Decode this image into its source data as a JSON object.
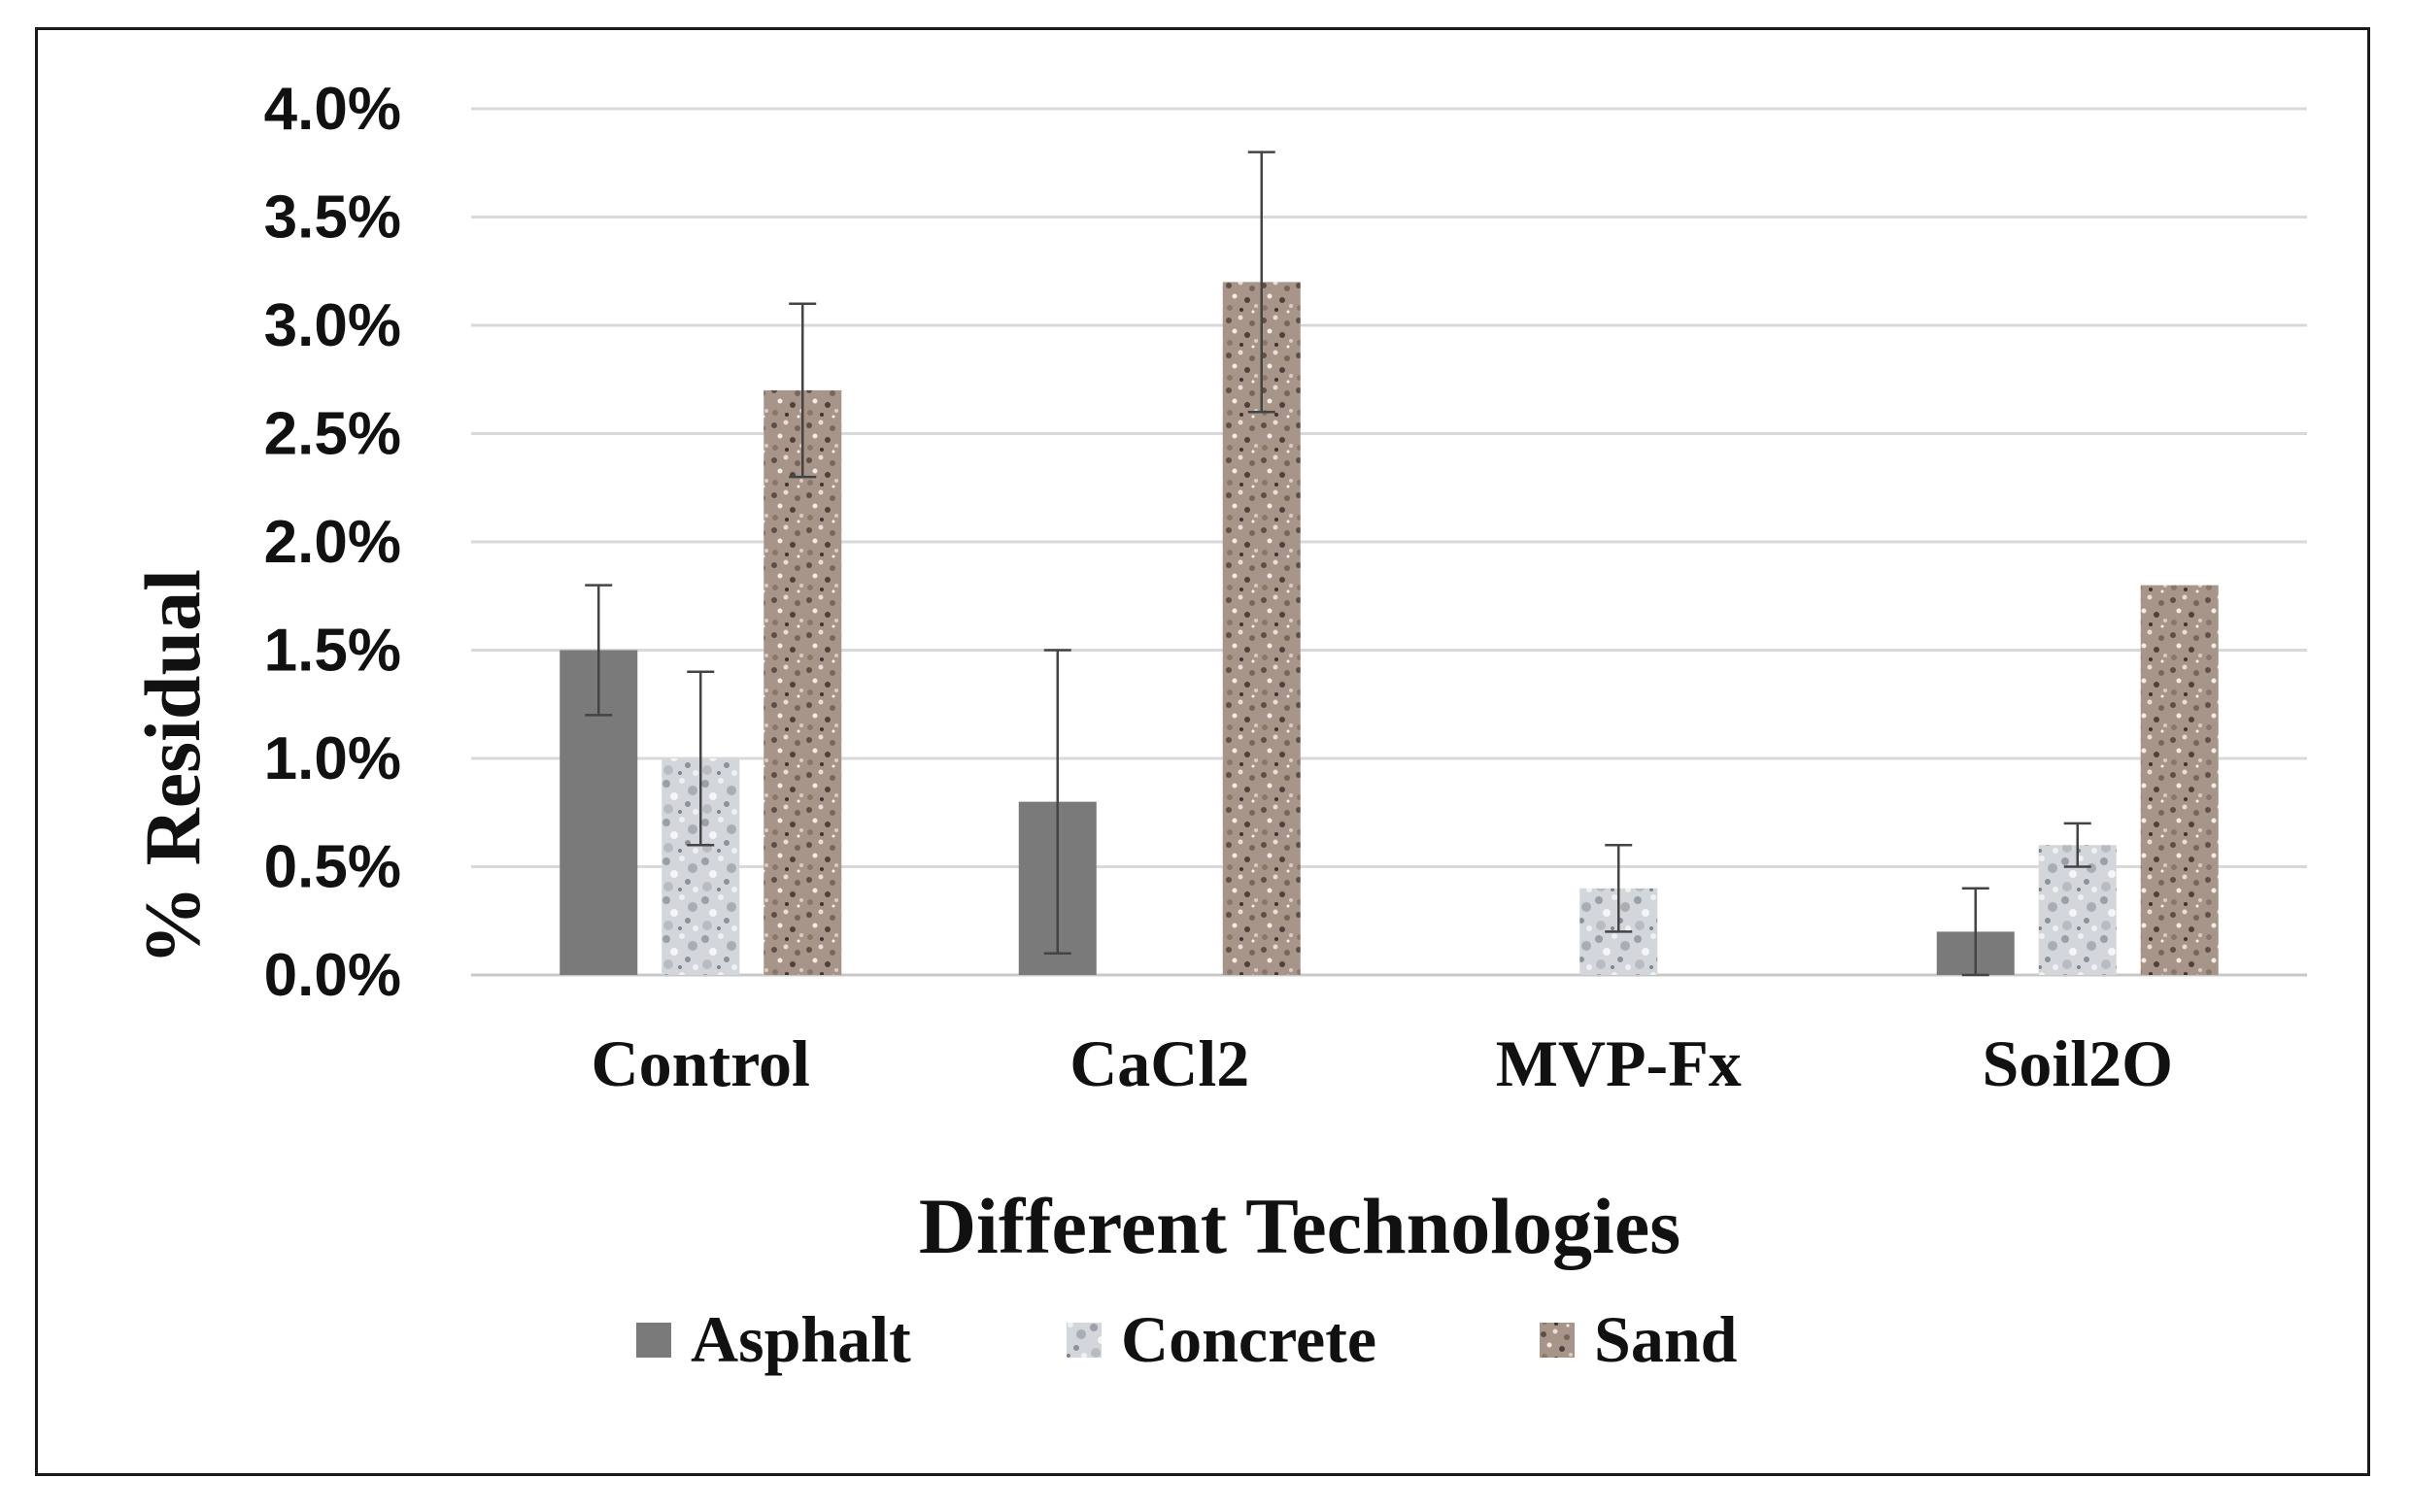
{
  "chart_data": {
    "type": "bar",
    "title": "",
    "xlabel": "Different Technologies",
    "ylabel": "% Residual",
    "categories": [
      "Control",
      "CaCl2",
      "MVP-Fx",
      "Soil2O"
    ],
    "ylim": [
      0,
      4.0
    ],
    "yticks": [
      "0.0%",
      "0.5%",
      "1.0%",
      "1.5%",
      "2.0%",
      "2.5%",
      "3.0%",
      "3.5%",
      "4.0%"
    ],
    "grid": true,
    "legend_position": "bottom",
    "series": [
      {
        "name": "Asphalt",
        "values": [
          1.5,
          0.8,
          0.0,
          0.2
        ],
        "errors": [
          0.3,
          0.7,
          0.0,
          0.2
        ],
        "color": "#7a7a7a",
        "pattern": "solid"
      },
      {
        "name": "Concrete",
        "values": [
          1.0,
          0.0,
          0.4,
          0.6
        ],
        "errors": [
          0.4,
          0.0,
          0.2,
          0.1
        ],
        "color": "#c9cdd3",
        "pattern": "marble"
      },
      {
        "name": "Sand",
        "values": [
          2.7,
          3.2,
          0.0,
          1.8
        ],
        "errors": [
          0.4,
          0.6,
          0.0,
          0.0
        ],
        "color": "#a8958a",
        "pattern": "granite"
      }
    ]
  }
}
